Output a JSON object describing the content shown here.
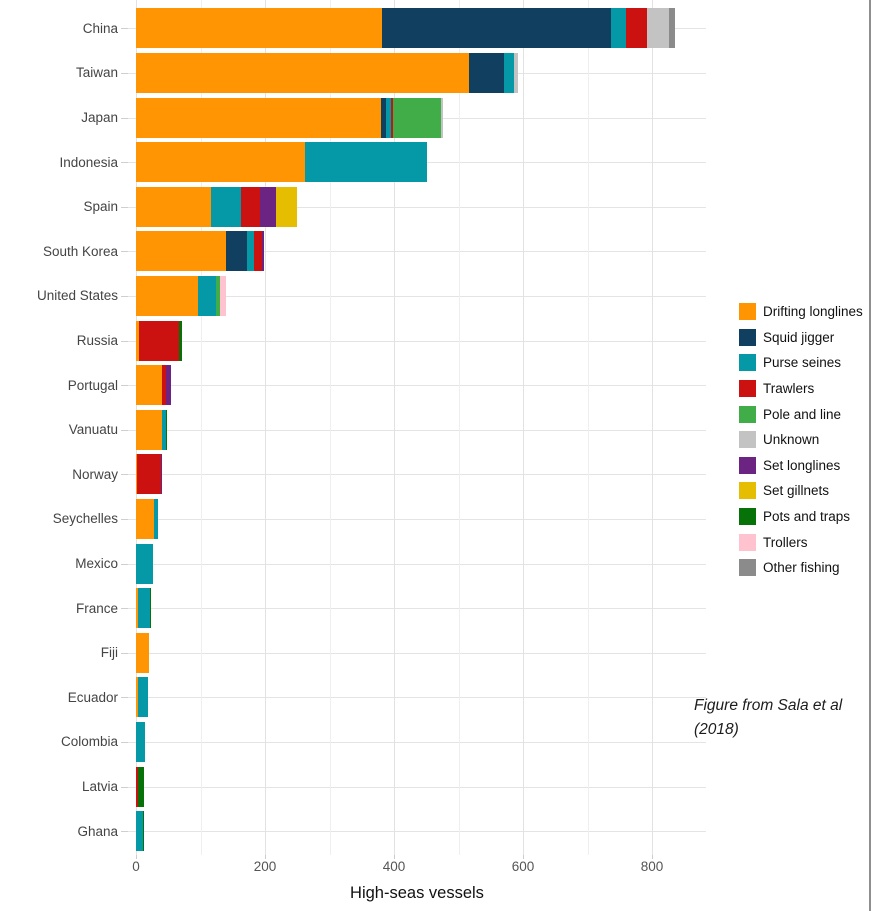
{
  "figure": {
    "annotation": "Figure from Sala et al (2018)"
  },
  "chart_data": {
    "type": "bar",
    "orientation": "horizontal",
    "stacked": true,
    "title": "",
    "xlabel": "High-seas vessels",
    "ylabel": "",
    "xlim": [
      0,
      880
    ],
    "x_ticks": [
      0,
      200,
      400,
      600,
      800
    ],
    "x_minor_gridlines": [
      100,
      300,
      500,
      700
    ],
    "grid": true,
    "legend_position": "right",
    "legend": [
      {
        "label": "Drifting longlines",
        "color": "#ff9502"
      },
      {
        "label": "Squid jigger",
        "color": "#103f5f"
      },
      {
        "label": "Purse seines",
        "color": "#0599a8"
      },
      {
        "label": "Trawlers",
        "color": "#cc1111"
      },
      {
        "label": "Pole and line",
        "color": "#41ad49"
      },
      {
        "label": "Unknown",
        "color": "#c3c3c3"
      },
      {
        "label": "Set longlines",
        "color": "#6c2483"
      },
      {
        "label": "Set gillnets",
        "color": "#e5be01"
      },
      {
        "label": "Pots and traps",
        "color": "#077207"
      },
      {
        "label": "Trollers",
        "color": "#ffc2cf"
      },
      {
        "label": "Other fishing",
        "color": "#8b8b8b"
      }
    ],
    "rows": [
      {
        "country": "China",
        "total": 835,
        "segments": {
          "Drifting longlines": 381,
          "Squid jigger": 355,
          "Purse seines": 23,
          "Trawlers": 34,
          "Unknown": 34,
          "Other fishing": 8
        }
      },
      {
        "country": "Taiwan",
        "total": 592,
        "segments": {
          "Drifting longlines": 516,
          "Squid jigger": 54,
          "Purse seines": 16,
          "Unknown": 6
        }
      },
      {
        "country": "Japan",
        "total": 476,
        "segments": {
          "Drifting longlines": 380,
          "Squid jigger": 8,
          "Purse seines": 8,
          "Trawlers": 3,
          "Pole and line": 74,
          "Unknown": 3
        }
      },
      {
        "country": "Indonesia",
        "total": 451,
        "segments": {
          "Drifting longlines": 262,
          "Purse seines": 189
        }
      },
      {
        "country": "Spain",
        "total": 249,
        "segments": {
          "Drifting longlines": 117,
          "Purse seines": 46,
          "Trawlers": 29,
          "Set longlines": 25,
          "Set gillnets": 32
        }
      },
      {
        "country": "South Korea",
        "total": 198,
        "segments": {
          "Drifting longlines": 139,
          "Squid jigger": 33,
          "Purse seines": 11,
          "Trawlers": 12,
          "Set longlines": 3
        }
      },
      {
        "country": "United States",
        "total": 139,
        "segments": {
          "Drifting longlines": 96,
          "Purse seines": 28,
          "Pole and line": 6,
          "Trollers": 9
        }
      },
      {
        "country": "Russia",
        "total": 72,
        "segments": {
          "Drifting longlines": 5,
          "Trawlers": 62,
          "Pots and traps": 5
        }
      },
      {
        "country": "Portugal",
        "total": 54,
        "segments": {
          "Drifting longlines": 40,
          "Trawlers": 6,
          "Set longlines": 8
        }
      },
      {
        "country": "Vanuatu",
        "total": 48,
        "segments": {
          "Drifting longlines": 40,
          "Purse seines": 6,
          "Pots and traps": 2
        }
      },
      {
        "country": "Norway",
        "total": 41,
        "segments": {
          "Drifting longlines": 2,
          "Trawlers": 37,
          "Set longlines": 2
        }
      },
      {
        "country": "Seychelles",
        "total": 34,
        "segments": {
          "Drifting longlines": 28,
          "Purse seines": 6
        }
      },
      {
        "country": "Mexico",
        "total": 27,
        "segments": {
          "Purse seines": 27
        }
      },
      {
        "country": "France",
        "total": 22,
        "segments": {
          "Drifting longlines": 3,
          "Purse seines": 18,
          "Pots and traps": 1
        }
      },
      {
        "country": "Fiji",
        "total": 20,
        "segments": {
          "Drifting longlines": 20
        }
      },
      {
        "country": "Ecuador",
        "total": 18,
        "segments": {
          "Drifting longlines": 3,
          "Purse seines": 15
        }
      },
      {
        "country": "Colombia",
        "total": 14,
        "segments": {
          "Purse seines": 14
        }
      },
      {
        "country": "Latvia",
        "total": 12,
        "segments": {
          "Trawlers": 3,
          "Pots and traps": 9
        }
      },
      {
        "country": "Ghana",
        "total": 12,
        "segments": {
          "Purse seines": 11,
          "Pots and traps": 1
        }
      }
    ]
  }
}
